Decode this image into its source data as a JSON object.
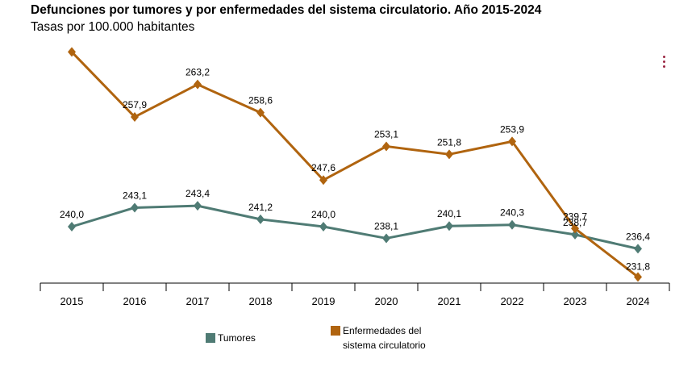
{
  "colors": {
    "tumores": "#4f7b74",
    "circulatorio": "#b0640f",
    "menu_accent": "#9b2743",
    "axis": "#000000"
  },
  "chart_data": {
    "type": "line",
    "title": "Defunciones por tumores y por enfermedades del sistema circulatorio. Año 2015-2024",
    "subtitle": "Tasas por 100.000 habitantes",
    "categories": [
      "2015",
      "2016",
      "2017",
      "2018",
      "2019",
      "2020",
      "2021",
      "2022",
      "2023",
      "2024"
    ],
    "series": [
      {
        "name": "Tumores",
        "values": [
          240.0,
          243.1,
          243.4,
          241.2,
          240.0,
          238.1,
          240.1,
          240.3,
          238.7,
          236.4
        ],
        "labels": [
          "240,0",
          "243,1",
          "243,4",
          "241,2",
          "240,0",
          "238,1",
          "240,1",
          "240,3",
          "238,7",
          "236,4"
        ]
      },
      {
        "name": "Enfermedades del sistema circulatorio",
        "values": [
          268.5,
          257.9,
          263.2,
          258.6,
          247.6,
          253.1,
          251.8,
          253.9,
          239.7,
          231.8
        ],
        "labels": [
          "",
          "257,9",
          "263,2",
          "258,6",
          "247,6",
          "253,1",
          "251,8",
          "253,9",
          "239,7",
          "231,8"
        ]
      }
    ],
    "legend": {
      "position": "bottom",
      "tumores": "Tumores",
      "circulatorio": "Enfermedades del\nsistema circulatorio"
    },
    "grid": false
  },
  "menu": {
    "icon": "kebab-menu-icon"
  }
}
